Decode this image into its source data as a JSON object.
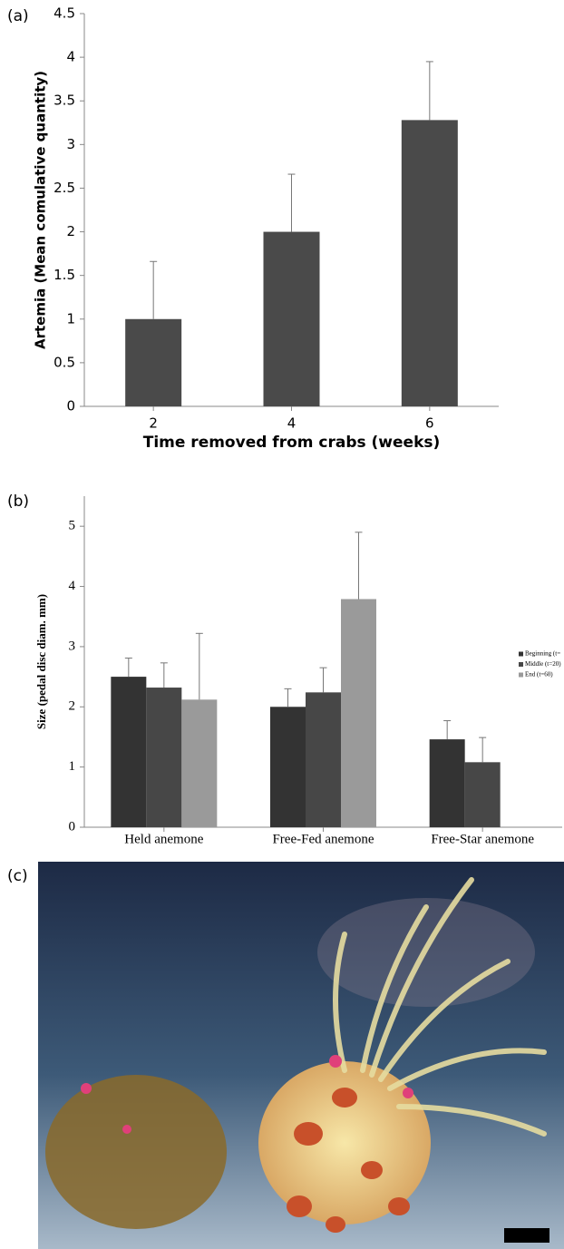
{
  "chart_data": [
    {
      "type": "bar",
      "panel_label": "(a)",
      "x_label": "Time removed from crabs (weeks)",
      "y_label": "Artemia (Mean comulative quantity)",
      "categories": [
        "2",
        "4",
        "6"
      ],
      "values": [
        1,
        2,
        3.28
      ],
      "errors": [
        0.66,
        0.66,
        0.67
      ],
      "color": "#4a4a4a",
      "ylim": [
        0,
        4.5
      ],
      "yticks": [
        0,
        0.5,
        1,
        1.5,
        2,
        2.5,
        3,
        3.5,
        4,
        4.5
      ],
      "grid": false
    },
    {
      "type": "bar",
      "panel_label": "(b)",
      "y_label": "Size (pedal disc diam. mm)",
      "categories": [
        "Held anemone",
        "Free-Fed anemone",
        "Free-Star anemone"
      ],
      "series": [
        {
          "name": "Beginning (t=",
          "color": "#333333",
          "values": [
            2.5,
            2.0,
            1.46
          ],
          "errors": [
            0.31,
            0.3,
            0.31
          ]
        },
        {
          "name": "Middle (t=20)",
          "color": "#474747",
          "values": [
            2.32,
            2.24,
            1.08
          ],
          "errors": [
            0.41,
            0.41,
            0.41
          ]
        },
        {
          "name": "End (t=60)",
          "color": "#9a9a9a",
          "values": [
            2.12,
            3.79,
            null
          ],
          "errors": [
            1.1,
            1.11,
            null
          ]
        }
      ],
      "ylim": [
        0,
        5.5
      ],
      "yticks": [
        0,
        1,
        2,
        3,
        4,
        5
      ],
      "grid": false,
      "legend": "right"
    }
  ],
  "figure_c": {
    "panel_label": "(c)"
  }
}
